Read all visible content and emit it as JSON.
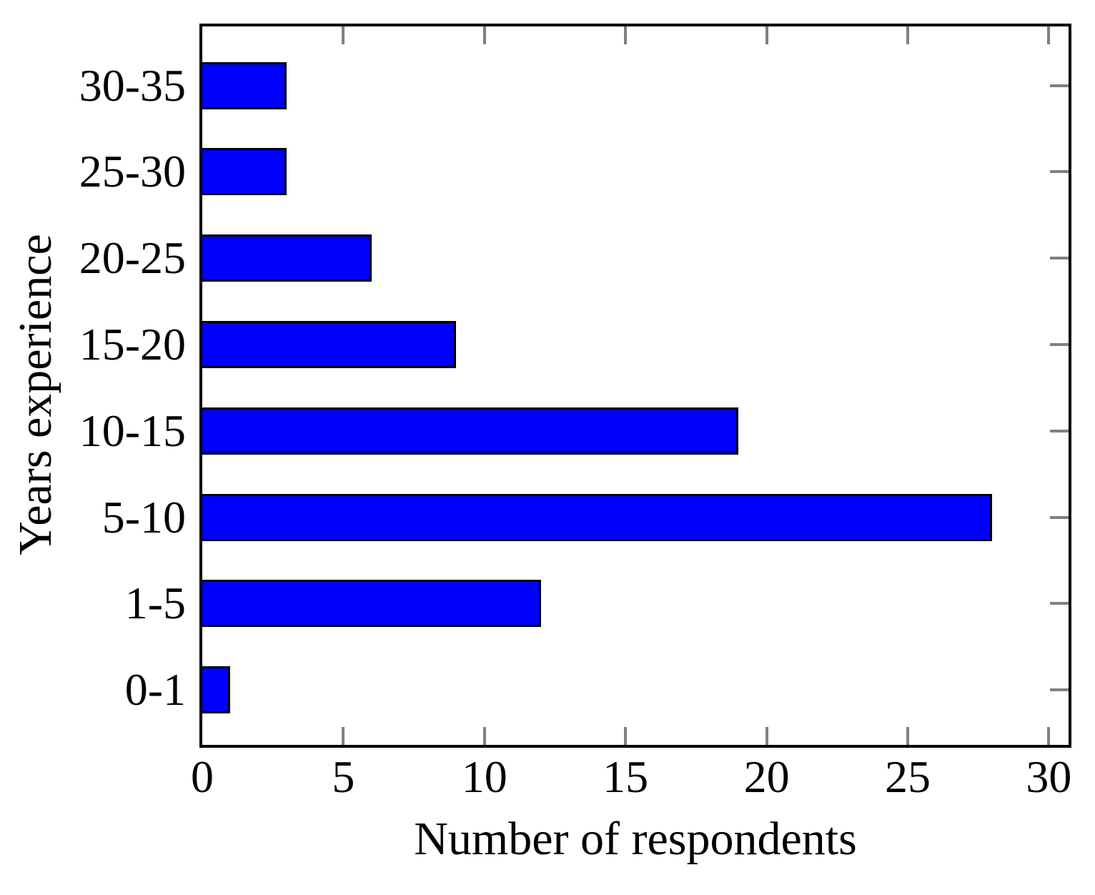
{
  "chart_data": {
    "type": "bar",
    "orientation": "horizontal",
    "title": "",
    "xlabel": "Number of respondents",
    "ylabel": "Years experience",
    "categories": [
      "30-35",
      "25-30",
      "20-25",
      "15-20",
      "10-15",
      "5-10",
      "1-5",
      "0-1"
    ],
    "values": [
      3,
      3,
      6,
      9,
      19,
      28,
      12,
      1
    ],
    "x_ticks": [
      0,
      5,
      10,
      15,
      20,
      25,
      30
    ],
    "xlim": [
      0,
      30.7
    ],
    "grid": false,
    "legend": "none",
    "colors": {
      "bar_fill": "#0000FF",
      "bar_border": "#000000",
      "frame": "#000000",
      "tick": "#808080",
      "text": "#000000",
      "background": "#FFFFFF"
    }
  }
}
